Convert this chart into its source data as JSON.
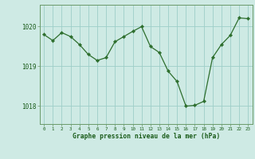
{
  "x": [
    0,
    1,
    2,
    3,
    4,
    5,
    6,
    7,
    8,
    9,
    10,
    11,
    12,
    13,
    14,
    15,
    16,
    17,
    18,
    19,
    20,
    21,
    22,
    23
  ],
  "y": [
    1019.8,
    1019.65,
    1019.85,
    1019.75,
    1019.55,
    1019.3,
    1019.15,
    1019.22,
    1019.62,
    1019.75,
    1019.88,
    1020.0,
    1019.5,
    1019.35,
    1018.88,
    1018.62,
    1018.0,
    1018.02,
    1018.12,
    1019.22,
    1019.55,
    1019.78,
    1020.22,
    1020.2
  ],
  "line_color": "#2d6e2d",
  "marker_color": "#2d6e2d",
  "bg_color": "#ceeae4",
  "grid_color": "#9ecec8",
  "xlabel": "Graphe pression niveau de la mer (hPa)",
  "xlabel_color": "#1a5c1a",
  "tick_color": "#1a5c1a",
  "axis_color": "#6a9a6a",
  "ylim": [
    1017.55,
    1020.55
  ],
  "yticks": [
    1018,
    1019,
    1020
  ],
  "xticks": [
    0,
    1,
    2,
    3,
    4,
    5,
    6,
    7,
    8,
    9,
    10,
    11,
    12,
    13,
    14,
    15,
    16,
    17,
    18,
    19,
    20,
    21,
    22,
    23
  ],
  "xtick_labels": [
    "0",
    "1",
    "2",
    "3",
    "4",
    "5",
    "6",
    "7",
    "8",
    "9",
    "10",
    "11",
    "12",
    "13",
    "14",
    "15",
    "16",
    "17",
    "18",
    "19",
    "20",
    "21",
    "22",
    "23"
  ]
}
